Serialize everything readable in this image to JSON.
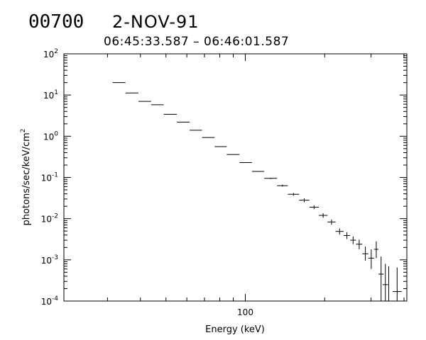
{
  "header": {
    "burst_id": "00700",
    "date": "2-NOV-91",
    "time_range": "06:45:33.587 – 06:46:01.587"
  },
  "chart_data": {
    "type": "scatter",
    "title": "",
    "xlabel": "Energy (keV)",
    "ylabel": "photons/sec/keV/cm²",
    "x_scale": "log",
    "y_scale": "log",
    "xlim": [
      20.5,
      410
    ],
    "ylim": [
      0.0001,
      100
    ],
    "x_tick_labels": [
      {
        "value": 100,
        "label": "100"
      }
    ],
    "y_tick_labels": [
      {
        "value": 100,
        "mantissa": "10",
        "exp": "2"
      },
      {
        "value": 10,
        "mantissa": "10",
        "exp": "1"
      },
      {
        "value": 1,
        "mantissa": "10",
        "exp": "0"
      },
      {
        "value": 0.1,
        "mantissa": "10",
        "exp": "-1"
      },
      {
        "value": 0.01,
        "mantissa": "10",
        "exp": "-2"
      },
      {
        "value": 0.001,
        "mantissa": "10",
        "exp": "-3"
      },
      {
        "value": 0.0001,
        "mantissa": "10",
        "exp": "-4"
      }
    ],
    "grid": false,
    "legend": "none",
    "color": "#000000",
    "points": [
      {
        "x_lo": 31.4,
        "x_hi": 35.1,
        "y": 20.0,
        "y_lo": 20.0,
        "y_hi": 20.0
      },
      {
        "x_lo": 35.1,
        "x_hi": 39.3,
        "y": 11.2,
        "y_lo": 11.2,
        "y_hi": 11.2
      },
      {
        "x_lo": 39.3,
        "x_hi": 43.9,
        "y": 7.0,
        "y_lo": 7.0,
        "y_hi": 7.0
      },
      {
        "x_lo": 43.9,
        "x_hi": 49.0,
        "y": 5.8,
        "y_lo": 5.8,
        "y_hi": 5.8
      },
      {
        "x_lo": 49.0,
        "x_hi": 55.0,
        "y": 3.4,
        "y_lo": 3.4,
        "y_hi": 3.4
      },
      {
        "x_lo": 55.0,
        "x_hi": 61.5,
        "y": 2.2,
        "y_lo": 2.2,
        "y_hi": 2.2
      },
      {
        "x_lo": 61.5,
        "x_hi": 68.5,
        "y": 1.4,
        "y_lo": 1.4,
        "y_hi": 1.4
      },
      {
        "x_lo": 68.5,
        "x_hi": 76.5,
        "y": 0.93,
        "y_lo": 0.93,
        "y_hi": 0.93
      },
      {
        "x_lo": 76.5,
        "x_hi": 85.0,
        "y": 0.56,
        "y_lo": 0.56,
        "y_hi": 0.56
      },
      {
        "x_lo": 85.0,
        "x_hi": 95.0,
        "y": 0.36,
        "y_lo": 0.36,
        "y_hi": 0.36
      },
      {
        "x_lo": 95.0,
        "x_hi": 106.0,
        "y": 0.23,
        "y_lo": 0.23,
        "y_hi": 0.23
      },
      {
        "x_lo": 106.0,
        "x_hi": 118.0,
        "y": 0.14,
        "y_lo": 0.14,
        "y_hi": 0.14
      },
      {
        "x_lo": 118.0,
        "x_hi": 132.0,
        "y": 0.095,
        "y_lo": 0.092,
        "y_hi": 0.098
      },
      {
        "x_lo": 132.0,
        "x_hi": 145.0,
        "y": 0.063,
        "y_lo": 0.06,
        "y_hi": 0.067
      },
      {
        "x_lo": 145.0,
        "x_hi": 160.0,
        "y": 0.039,
        "y_lo": 0.036,
        "y_hi": 0.042
      },
      {
        "x_lo": 160.0,
        "x_hi": 175.0,
        "y": 0.028,
        "y_lo": 0.025,
        "y_hi": 0.031
      },
      {
        "x_lo": 175.0,
        "x_hi": 190.0,
        "y": 0.019,
        "y_lo": 0.017,
        "y_hi": 0.021
      },
      {
        "x_lo": 190.0,
        "x_hi": 205.0,
        "y": 0.012,
        "y_lo": 0.0105,
        "y_hi": 0.0135
      },
      {
        "x_lo": 205.0,
        "x_hi": 220.0,
        "y": 0.0083,
        "y_lo": 0.0071,
        "y_hi": 0.0095
      },
      {
        "x_lo": 220.0,
        "x_hi": 236.0,
        "y": 0.0049,
        "y_lo": 0.0041,
        "y_hi": 0.0058
      },
      {
        "x_lo": 236.0,
        "x_hi": 250.0,
        "y": 0.0039,
        "y_lo": 0.0032,
        "y_hi": 0.0047
      },
      {
        "x_lo": 250.0,
        "x_hi": 263.0,
        "y": 0.003,
        "y_lo": 0.0024,
        "y_hi": 0.0037
      },
      {
        "x_lo": 263.0,
        "x_hi": 278.0,
        "y": 0.0024,
        "y_lo": 0.0018,
        "y_hi": 0.0031
      },
      {
        "x_lo": 278.0,
        "x_hi": 293.0,
        "y": 0.0014,
        "y_lo": 0.00095,
        "y_hi": 0.0021
      },
      {
        "x_lo": 293.0,
        "x_hi": 308.0,
        "y": 0.0011,
        "y_lo": 0.0006,
        "y_hi": 0.0018
      },
      {
        "x_lo": 308.0,
        "x_hi": 320.0,
        "y": 0.0018,
        "y_lo": 0.0011,
        "y_hi": 0.0028
      },
      {
        "x_lo": 320.0,
        "x_hi": 335.0,
        "y": 0.00045,
        "y_lo": 0.0001,
        "y_hi": 0.0012
      },
      {
        "x_lo": 332.0,
        "x_hi": 348.0,
        "y": 0.00025,
        "y_lo": 0.0001,
        "y_hi": 0.0008
      },
      {
        "x_lo": 345.0,
        "x_hi": 355.0,
        "y": 0.0001,
        "y_lo": 0.0001,
        "y_hi": 0.0007
      },
      {
        "x_lo": 362.0,
        "x_hi": 392.0,
        "y": 0.00017,
        "y_lo": 0.0001,
        "y_hi": 0.00065
      }
    ]
  }
}
